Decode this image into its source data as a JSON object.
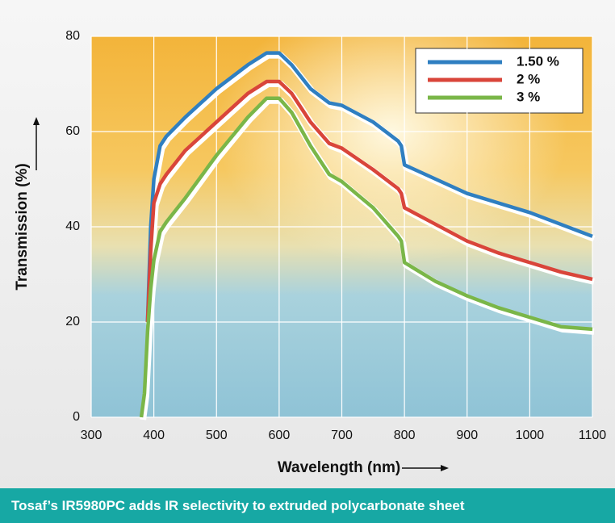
{
  "chart_data": {
    "type": "line",
    "x_label": "Wavelength (nm)",
    "y_label": "Transmission (%)",
    "x": [
      380,
      385,
      390,
      395,
      400,
      410,
      420,
      450,
      500,
      550,
      580,
      600,
      620,
      650,
      680,
      700,
      750,
      790,
      795,
      800,
      850,
      900,
      950,
      1000,
      1050,
      1100
    ],
    "series": [
      {
        "name": "1.50 %",
        "color": "#2f7fc1",
        "values": [
          null,
          null,
          20,
          40,
          50,
          57,
          59,
          63,
          69,
          74,
          76.5,
          76.5,
          74,
          69,
          66,
          65.5,
          62,
          58,
          57,
          53,
          50,
          47,
          45,
          43,
          40.5,
          38
        ]
      },
      {
        "name": "2 %",
        "color": "#d9453a",
        "values": [
          null,
          null,
          20,
          35,
          45,
          49,
          51,
          56,
          62,
          68,
          70.5,
          70.5,
          68,
          62,
          57.5,
          56.5,
          52,
          48,
          47,
          44,
          40.5,
          37,
          34.5,
          32.5,
          30.5,
          29
        ]
      },
      {
        "name": "3 %",
        "color": "#7ab648",
        "values": [
          0,
          5,
          18,
          27,
          33,
          39,
          41,
          46,
          55,
          63,
          67,
          67,
          64,
          57,
          51,
          49.5,
          44,
          38,
          37,
          32.5,
          28.5,
          25.5,
          23,
          21,
          19,
          18.5
        ]
      }
    ],
    "xlim": [
      300,
      1100
    ],
    "xticks": [
      300,
      400,
      500,
      600,
      700,
      800,
      900,
      1000,
      1100
    ],
    "ylim": [
      0,
      80
    ],
    "yticks": [
      0,
      20,
      40,
      60,
      80
    ],
    "grid": true
  },
  "caption": "Tosaf’s IR5980PC adds IR selectivity to extruded polycarbonate sheet"
}
